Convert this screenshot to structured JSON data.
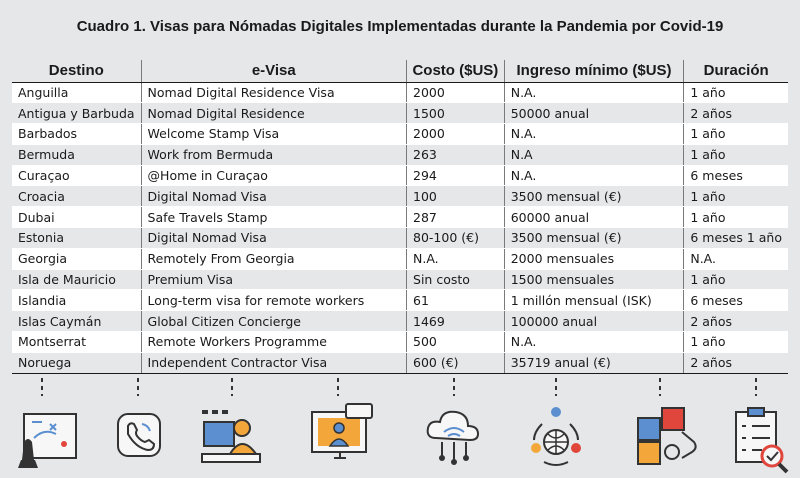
{
  "title": "Cuadro 1. Visas para Nómadas Digitales Implementadas durante la Pandemia por Covid-19",
  "columns": [
    "Destino",
    "e-Visa",
    "Costo ($US)",
    "Ingreso mínimo ($US)",
    "Duración"
  ],
  "rows": [
    [
      "Anguilla",
      "Nomad Digital Residence Visa",
      "2000",
      "N.A.",
      "1 año"
    ],
    [
      "Antigua y Barbuda",
      "Nomad Digital Residence",
      "1500",
      "50000 anual",
      "2 años"
    ],
    [
      "Barbados",
      "Welcome Stamp Visa",
      "2000",
      "N.A.",
      "1 año"
    ],
    [
      "Bermuda",
      "Work from Bermuda",
      "263",
      "N.A",
      "1 año"
    ],
    [
      "Curaçao",
      "@Home in Curaçao",
      "294",
      "N.A.",
      "6 meses"
    ],
    [
      "Croacia",
      "Digital Nomad Visa",
      "100",
      "3500 mensual (€)",
      "1 año"
    ],
    [
      "Dubai",
      "Safe Travels Stamp",
      "287",
      "60000 anual",
      "1 año"
    ],
    [
      "Estonia",
      "Digital Nomad Visa",
      "80-100 (€)",
      "3500 mensual (€)",
      "6 meses 1 año"
    ],
    [
      "Georgia",
      "Remotely From Georgia",
      "N.A.",
      "2000 mensuales",
      "N.A."
    ],
    [
      "Isla de Mauricio",
      "Premium Visa",
      "Sin costo",
      "1500 mensuales",
      "1 año"
    ],
    [
      "Islandia",
      "Long-term visa for remote workers",
      "61",
      "1 millón mensual (ISK)",
      "6 meses"
    ],
    [
      "Islas Caymán",
      "Global Citizen Concierge",
      "1469",
      "100000 anual",
      "2 años"
    ],
    [
      "Montserrat",
      "Remote Workers Programme",
      "500",
      "N.A.",
      "1 año"
    ],
    [
      "Noruega",
      "Independent Contractor Visa",
      "600 (€)",
      "35719 anual (€)",
      "2 años"
    ]
  ],
  "colors": {
    "background": "#e6e7e8",
    "row_even": "#ffffff",
    "row_odd": "#e6e7e8",
    "icon_blue": "#5b8fd0",
    "icon_orange": "#f3a73b",
    "icon_red": "#e0463c"
  },
  "icons": [
    "strategy-board-icon",
    "phone-call-icon",
    "remote-work-desk-icon",
    "video-conference-icon",
    "cloud-network-icon",
    "global-team-icon",
    "puzzle-collaboration-icon",
    "checklist-icon"
  ]
}
